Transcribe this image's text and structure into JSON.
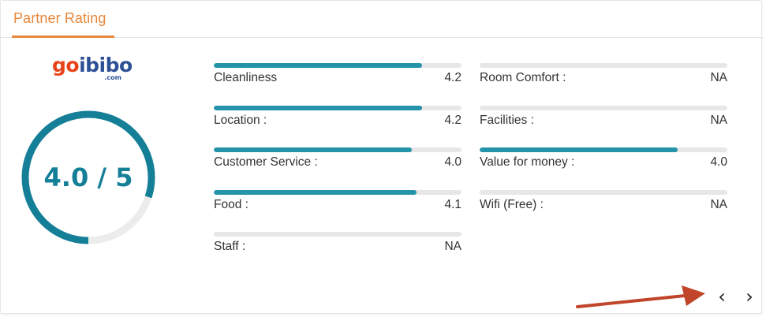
{
  "header": {
    "title": "Partner Rating"
  },
  "partner": {
    "logo_text_1": "go",
    "logo_text_2": "ibibo",
    "logo_sub": ".com"
  },
  "overall": {
    "rating_text": "4.0 / 5",
    "score": 4.0,
    "max": 5
  },
  "metrics_left": [
    {
      "label": "Cleanliness",
      "value": "4.2",
      "score": 4.2
    },
    {
      "label": "Location :",
      "value": "4.2",
      "score": 4.2
    },
    {
      "label": "Customer Service :",
      "value": "4.0",
      "score": 4.0
    },
    {
      "label": "Food :",
      "value": "4.1",
      "score": 4.1
    },
    {
      "label": "Staff :",
      "value": "NA",
      "score": 0
    }
  ],
  "metrics_right": [
    {
      "label": "Room Comfort :",
      "value": "NA",
      "score": 0
    },
    {
      "label": "Facilities :",
      "value": "NA",
      "score": 0
    },
    {
      "label": "Value for money :",
      "value": "4.0",
      "score": 4.0
    },
    {
      "label": "Wifi (Free) :",
      "value": "NA",
      "score": 0
    }
  ],
  "pager": {
    "prev_label": "‹",
    "next_label": "›"
  },
  "colors": {
    "accent": "#e8873a",
    "bar": "#2394aa",
    "gauge": "#157f98",
    "arrow": "#c0452a"
  }
}
